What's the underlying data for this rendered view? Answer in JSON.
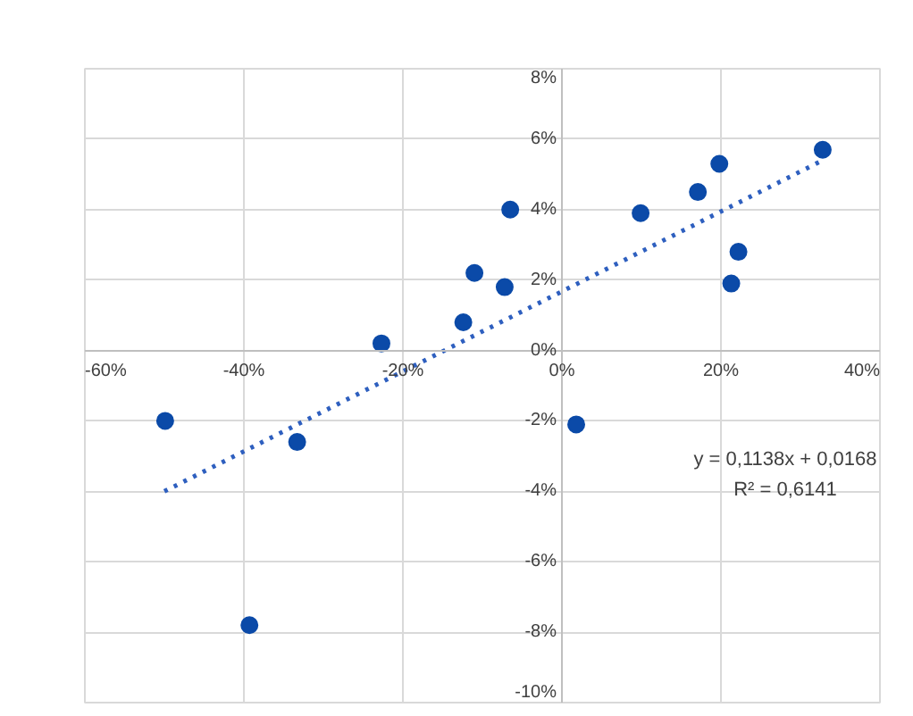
{
  "chart_data": {
    "type": "scatter",
    "xlim": [
      -60,
      40
    ],
    "ylim": [
      -10,
      8
    ],
    "xticks": [
      {
        "value": -60,
        "label": "-60%"
      },
      {
        "value": -40,
        "label": "-40%"
      },
      {
        "value": -20,
        "label": "-20%"
      },
      {
        "value": 0,
        "label": "0%"
      },
      {
        "value": 20,
        "label": "20%"
      },
      {
        "value": 40,
        "label": "40%"
      }
    ],
    "yticks": [
      {
        "value": -10,
        "label": "-10%"
      },
      {
        "value": -8,
        "label": "-8%"
      },
      {
        "value": -6,
        "label": "-6%"
      },
      {
        "value": -4,
        "label": "-4%"
      },
      {
        "value": -2,
        "label": "-2%"
      },
      {
        "value": 0,
        "label": "0%"
      },
      {
        "value": 2,
        "label": "2%"
      },
      {
        "value": 4,
        "label": "4%"
      },
      {
        "value": 6,
        "label": "6%"
      },
      {
        "value": 8,
        "label": "8%"
      }
    ],
    "grid": true,
    "marker": "circle",
    "series": [
      {
        "type": "scatter",
        "color": "#0b4aa8",
        "x": [
          -49.9,
          -39.3,
          -33.3,
          -22.7,
          -12.4,
          -11.0,
          -7.2,
          -6.5,
          1.8,
          9.9,
          17.1,
          19.8,
          21.3,
          22.2,
          32.8
        ],
        "values": [
          -2.0,
          -7.8,
          -2.6,
          0.2,
          0.8,
          2.2,
          1.8,
          4.0,
          -2.1,
          3.9,
          4.5,
          5.3,
          1.9,
          2.8,
          5.7
        ]
      },
      {
        "type": "line",
        "color": "#2e5fbf",
        "line_style": "dotted",
        "marker": "none",
        "x": [
          -50,
          32.8
        ],
        "values": [
          -4.0,
          5.4
        ]
      }
    ],
    "annotations": [
      "y = 0,1138x + 0,0168",
      "R² = 0,6141"
    ]
  }
}
